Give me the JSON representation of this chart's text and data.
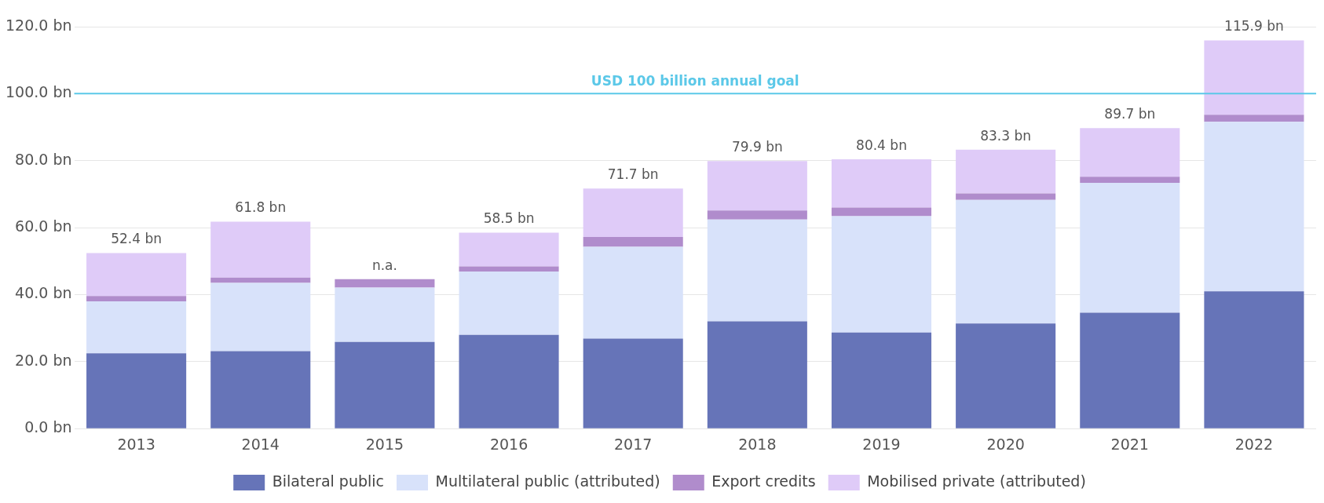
{
  "chart_data": {
    "type": "bar",
    "stacked": true,
    "categories": [
      "2013",
      "2014",
      "2015",
      "2016",
      "2017",
      "2018",
      "2019",
      "2020",
      "2021",
      "2022"
    ],
    "series": [
      {
        "name": "Bilateral public",
        "color": "#6674b8",
        "values": [
          22.5,
          23.1,
          25.9,
          28.0,
          26.9,
          32.0,
          28.7,
          31.4,
          34.6,
          41.0
        ]
      },
      {
        "name": "Multilateral public (attributed)",
        "color": "#d8e2fa",
        "values": [
          15.5,
          20.4,
          16.2,
          18.9,
          27.4,
          30.4,
          34.7,
          36.9,
          38.8,
          50.6
        ]
      },
      {
        "name": "Export credits",
        "color": "#b08ccc",
        "values": [
          1.6,
          1.6,
          2.5,
          1.5,
          2.9,
          2.7,
          2.6,
          1.9,
          1.8,
          2.1
        ]
      },
      {
        "name": "Mobilised private (attributed)",
        "color": "#dfcbf8",
        "values": [
          12.8,
          16.7,
          null,
          10.1,
          14.5,
          14.8,
          14.4,
          13.1,
          14.5,
          22.2
        ]
      }
    ],
    "totals": [
      "52.4 bn",
      "61.8 bn",
      "n.a.",
      "58.5 bn",
      "71.7 bn",
      "79.9 bn",
      "80.4 bn",
      "83.3 bn",
      "89.7 bn",
      "115.9 bn"
    ],
    "ylim": [
      0,
      120
    ],
    "yticks": [
      {
        "value": 0,
        "label": "0.0 bn"
      },
      {
        "value": 20,
        "label": "20.0 bn"
      },
      {
        "value": 40,
        "label": "40.0 bn"
      },
      {
        "value": 60,
        "label": "60.0 bn"
      },
      {
        "value": 80,
        "label": "80.0 bn"
      },
      {
        "value": 100,
        "label": "100.0 bn"
      },
      {
        "value": 120,
        "label": "120.0 bn"
      }
    ],
    "ref_lines": [
      {
        "axis": "y",
        "value": 100,
        "label": "USD 100 billion annual goal",
        "color": "#5bc8e8"
      }
    ],
    "grid": "y",
    "legend": "bottom"
  }
}
